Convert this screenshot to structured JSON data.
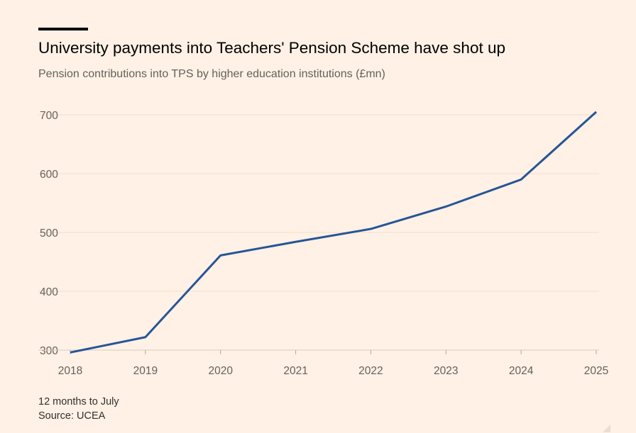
{
  "header": {
    "title": "University payments into Teachers' Pension Scheme have shot up",
    "subtitle": "Pension contributions into TPS by higher education institutions (£mn)"
  },
  "footer": {
    "note": "12 months to July",
    "source": "Source: UCEA"
  },
  "colors": {
    "background": "#fff1e5",
    "line": "#265596",
    "grid": "#f2dfce",
    "tick_text": "#66605c"
  },
  "chart_data": {
    "type": "line",
    "title": "University payments into Teachers' Pension Scheme have shot up",
    "subtitle": "Pension contributions into TPS by higher education institutions (£mn)",
    "xlabel": "",
    "ylabel": "",
    "x": [
      2018,
      2019,
      2020,
      2021,
      2022,
      2023,
      2024,
      2025
    ],
    "x_tick_labels": [
      "2018",
      "2019",
      "2020",
      "2021",
      "2022",
      "2023",
      "2024",
      "2025"
    ],
    "y_ticks": [
      300,
      400,
      500,
      600,
      700
    ],
    "y_tick_labels": [
      "300",
      "400",
      "500",
      "600",
      "700"
    ],
    "ylim": [
      300,
      700
    ],
    "grid": true,
    "series": [
      {
        "values": [
          296,
          322,
          461,
          484,
          506,
          544,
          590,
          705
        ]
      }
    ]
  }
}
